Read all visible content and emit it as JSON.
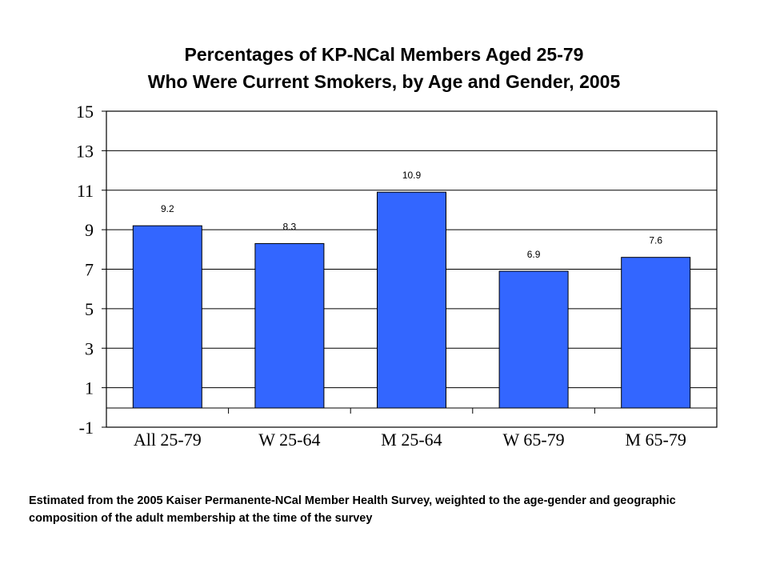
{
  "chart_data": {
    "type": "bar",
    "title": "Percentages of KP-NCal Members Aged 25-79",
    "subtitle": "Who Were Current Smokers, by Age and Gender, 2005",
    "xlabel": "",
    "ylabel": "",
    "categories": [
      "All 25-79",
      "W 25-64",
      "M 25-64",
      "W 65-79",
      "M 65-79"
    ],
    "values": [
      9.2,
      8.3,
      10.9,
      6.9,
      7.6
    ],
    "data_labels": [
      "9.2",
      "8.3",
      "10.9",
      "6.9",
      "7.6"
    ],
    "ylim": [
      -1,
      15
    ],
    "yticks": [
      "15",
      "13",
      "11",
      "9",
      "7",
      "5",
      "3",
      "1",
      "-1"
    ],
    "grid": true,
    "legend": "none",
    "bar_color": "#3366ff"
  },
  "footnote": "Estimated from the 2005 Kaiser Permanente-NCal Member Health Survey, weighted to the age-gender and geographic composition of the adult membership at the time of the survey"
}
